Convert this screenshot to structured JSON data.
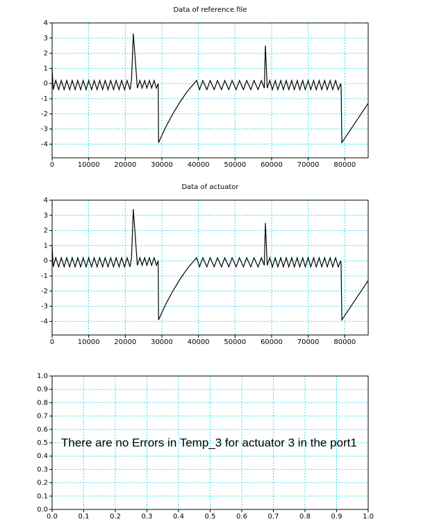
{
  "chart_data": [
    {
      "type": "line",
      "title": "Data of reference file",
      "x": [
        0,
        300,
        1000,
        1800,
        2500,
        3300,
        4000,
        4800,
        5500,
        6300,
        7000,
        7800,
        8500,
        9300,
        10000,
        10800,
        11500,
        12300,
        13000,
        13800,
        14500,
        15300,
        16000,
        16800,
        17500,
        18300,
        19000,
        19800,
        20500,
        21300,
        21700,
        22200,
        23300,
        24000,
        24600,
        25300,
        25900,
        26600,
        27200,
        27900,
        28500,
        29000,
        29100,
        31000,
        33000,
        35000,
        37000,
        39500,
        40300,
        41200,
        42300,
        43200,
        44300,
        45200,
        46300,
        47200,
        48300,
        49200,
        50300,
        51200,
        52300,
        53200,
        54300,
        55200,
        56300,
        57200,
        58000,
        58300,
        58800,
        59500,
        60200,
        61000,
        61700,
        62500,
        63200,
        64000,
        64700,
        65500,
        66200,
        67000,
        67700,
        68500,
        69200,
        70000,
        70700,
        71500,
        72200,
        73000,
        73700,
        74500,
        75200,
        76000,
        76700,
        77500,
        78200,
        78900,
        79000,
        79200,
        86400
      ],
      "series": [
        {
          "color": "#000000",
          "values": [
            1.0,
            -0.4,
            0.2,
            -0.4,
            0.2,
            -0.4,
            0.2,
            -0.4,
            0.2,
            -0.4,
            0.2,
            -0.4,
            0.2,
            -0.4,
            0.2,
            -0.4,
            0.2,
            -0.4,
            0.2,
            -0.4,
            0.2,
            -0.4,
            0.2,
            -0.4,
            0.2,
            -0.4,
            0.2,
            -0.4,
            0.2,
            -0.4,
            0.2,
            3.3,
            -0.3,
            0.2,
            -0.3,
            0.2,
            -0.3,
            0.2,
            -0.3,
            0.2,
            -0.3,
            0.0,
            -3.9,
            -2.9,
            -2.0,
            -1.2,
            -0.5,
            0.2,
            -0.4,
            0.2,
            -0.4,
            0.2,
            -0.4,
            0.2,
            -0.4,
            0.2,
            -0.4,
            0.2,
            -0.4,
            0.2,
            -0.4,
            0.2,
            -0.4,
            0.2,
            -0.4,
            0.2,
            -0.3,
            2.5,
            -0.3,
            0.2,
            -0.4,
            0.2,
            -0.4,
            0.2,
            -0.4,
            0.2,
            -0.4,
            0.2,
            -0.4,
            0.2,
            -0.4,
            0.2,
            -0.4,
            0.2,
            -0.4,
            0.2,
            -0.4,
            0.2,
            -0.4,
            0.2,
            -0.4,
            0.2,
            -0.4,
            0.2,
            -0.4,
            0.0,
            -0.3,
            -3.9,
            -1.3
          ]
        }
      ],
      "xlim": [
        0,
        86400
      ],
      "ylim": [
        -4.9,
        4
      ],
      "xticks": [
        0,
        10000,
        20000,
        30000,
        40000,
        50000,
        60000,
        70000,
        80000
      ],
      "yticks": [
        -4,
        -3,
        -2,
        -1,
        0,
        1,
        2,
        3,
        4
      ],
      "grid": true
    },
    {
      "type": "line",
      "title": "Data of actuator",
      "x": [
        0,
        300,
        1000,
        1800,
        2500,
        3300,
        4000,
        4800,
        5500,
        6300,
        7000,
        7800,
        8500,
        9300,
        10000,
        10800,
        11500,
        12300,
        13000,
        13800,
        14500,
        15300,
        16000,
        16800,
        17500,
        18300,
        19000,
        19800,
        20500,
        21300,
        21700,
        22200,
        23300,
        24000,
        24600,
        25300,
        25900,
        26600,
        27200,
        27900,
        28500,
        29000,
        29100,
        31000,
        33000,
        35000,
        37000,
        39500,
        40300,
        41200,
        42300,
        43200,
        44300,
        45200,
        46300,
        47200,
        48300,
        49200,
        50300,
        51200,
        52300,
        53200,
        54300,
        55200,
        56300,
        57200,
        58000,
        58300,
        58800,
        59500,
        60200,
        61000,
        61700,
        62500,
        63200,
        64000,
        64700,
        65500,
        66200,
        67000,
        67700,
        68500,
        69200,
        70000,
        70700,
        71500,
        72200,
        73000,
        73700,
        74500,
        75200,
        76000,
        76700,
        77500,
        78200,
        78900,
        79000,
        79200,
        86400
      ],
      "series": [
        {
          "color": "#000000",
          "values": [
            1.0,
            -0.4,
            0.2,
            -0.4,
            0.2,
            -0.4,
            0.2,
            -0.4,
            0.2,
            -0.4,
            0.2,
            -0.4,
            0.2,
            -0.4,
            0.2,
            -0.4,
            0.2,
            -0.4,
            0.2,
            -0.4,
            0.2,
            -0.4,
            0.2,
            -0.4,
            0.2,
            -0.4,
            0.2,
            -0.4,
            0.2,
            -0.4,
            0.2,
            3.4,
            -0.3,
            0.2,
            -0.3,
            0.2,
            -0.3,
            0.2,
            -0.3,
            0.2,
            -0.3,
            0.0,
            -3.9,
            -2.9,
            -2.0,
            -1.2,
            -0.5,
            0.2,
            -0.4,
            0.2,
            -0.4,
            0.2,
            -0.4,
            0.2,
            -0.4,
            0.2,
            -0.4,
            0.2,
            -0.4,
            0.2,
            -0.4,
            0.2,
            -0.4,
            0.2,
            -0.4,
            0.2,
            -0.3,
            2.5,
            -0.3,
            0.2,
            -0.4,
            0.2,
            -0.4,
            0.2,
            -0.4,
            0.2,
            -0.4,
            0.2,
            -0.4,
            0.2,
            -0.4,
            0.2,
            -0.4,
            0.2,
            -0.4,
            0.2,
            -0.4,
            0.2,
            -0.4,
            0.2,
            -0.4,
            0.2,
            -0.4,
            0.2,
            -0.4,
            0.0,
            -0.3,
            -3.9,
            -1.3
          ]
        }
      ],
      "xlim": [
        0,
        86400
      ],
      "ylim": [
        -4.9,
        4
      ],
      "xticks": [
        0,
        10000,
        20000,
        30000,
        40000,
        50000,
        60000,
        70000,
        80000
      ],
      "yticks": [
        -4,
        -3,
        -2,
        -1,
        0,
        1,
        2,
        3,
        4
      ],
      "grid": true
    },
    {
      "type": "line",
      "annotation": "There are no Errors in Temp_3 for actuator 3 in the port1",
      "xlim": [
        0,
        1
      ],
      "ylim": [
        0,
        1
      ],
      "xticks": [
        {
          "value": 0,
          "label": "0.0"
        },
        0.1,
        0.2,
        0.3,
        0.4,
        0.5,
        0.6,
        0.7,
        0.8,
        0.9,
        {
          "value": 1,
          "label": "1.0"
        }
      ],
      "yticks": [
        {
          "value": 0,
          "label": "0.0"
        },
        0.1,
        0.2,
        0.3,
        0.4,
        0.5,
        0.6,
        0.7,
        0.8,
        0.9,
        {
          "value": 1,
          "label": "1.0"
        }
      ],
      "grid": true
    }
  ]
}
